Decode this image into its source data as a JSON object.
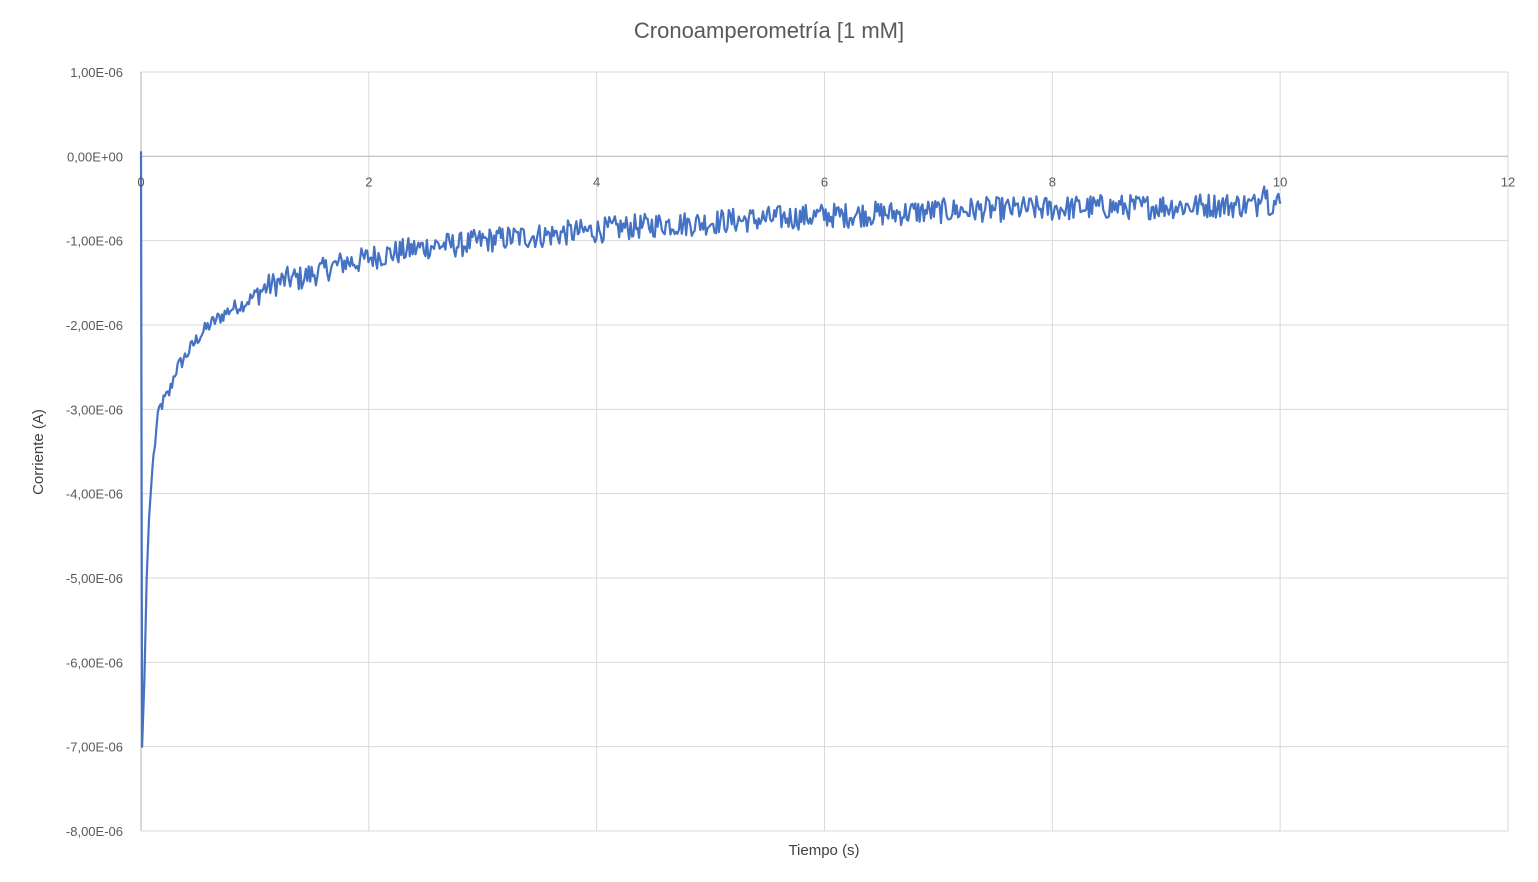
{
  "chart_data": {
    "type": "line",
    "title": "Cronoamperometría [1 mM]",
    "xlabel": "Tiempo (s)",
    "ylabel": "Corriente (A)",
    "xlim": [
      0,
      12
    ],
    "ylim": [
      -8e-06,
      1e-06
    ],
    "x_ticks": [
      0,
      2,
      4,
      6,
      8,
      10,
      12
    ],
    "x_tick_labels": [
      "0",
      "2",
      "4",
      "6",
      "8",
      "10",
      "12"
    ],
    "y_ticks": [
      1e-06,
      0,
      -1e-06,
      -2e-06,
      -3e-06,
      -4e-06,
      -5e-06,
      -6e-06,
      -7e-06,
      -8e-06
    ],
    "y_tick_labels": [
      "1,00E-06",
      "0,00E+00",
      "-1,00E-06",
      "-2,00E-06",
      "-3,00E-06",
      "-4,00E-06",
      "-5,00E-06",
      "-6,00E-06",
      "-7,00E-06",
      "-8,00E-06"
    ],
    "grid": true,
    "legend": "none",
    "series_color": "#4472c4",
    "series": [
      {
        "x": [
          0,
          0.01,
          0.03,
          0.05,
          0.07,
          0.1,
          0.13,
          0.16,
          0.2,
          0.25,
          0.3,
          0.35,
          0.4,
          0.45,
          0.5,
          0.6,
          0.7,
          0.8,
          0.9,
          1.0,
          1.1,
          1.2,
          1.3,
          1.4,
          1.5,
          1.6,
          1.7,
          1.8,
          1.9,
          2.0,
          2.2,
          2.4,
          2.6,
          2.8,
          3.0,
          3.2,
          3.4,
          3.6,
          3.8,
          4.0,
          4.2,
          4.4,
          4.6,
          4.8,
          5.0,
          5.2,
          5.4,
          5.6,
          5.8,
          6.0,
          6.2,
          6.4,
          6.6,
          6.8,
          7.0,
          7.2,
          7.4,
          7.6,
          7.8,
          8.0,
          8.2,
          8.4,
          8.6,
          8.8,
          9.0,
          9.2,
          9.4,
          9.6,
          9.8,
          9.85,
          9.9,
          10.0
        ],
        "y": [
          5e-08,
          -7e-06,
          -6.2e-06,
          -5e-06,
          -4.3e-06,
          -3.7e-06,
          -3.3e-06,
          -3e-06,
          -2.9e-06,
          -2.8e-06,
          -2.55e-06,
          -2.45e-06,
          -2.35e-06,
          -2.25e-06,
          -2.15e-06,
          -2e-06,
          -1.9e-06,
          -1.8e-06,
          -1.75e-06,
          -1.65e-06,
          -1.55e-06,
          -1.5e-06,
          -1.45e-06,
          -1.45e-06,
          -1.4e-06,
          -1.35e-06,
          -1.3e-06,
          -1.25e-06,
          -1.25e-06,
          -1.2e-06,
          -1.15e-06,
          -1.1e-06,
          -1.05e-06,
          -1.05e-06,
          -1e-06,
          -9.7e-07,
          -9.5e-07,
          -9.3e-07,
          -9e-07,
          -8.8e-07,
          -8.5e-07,
          -8.3e-07,
          -8e-07,
          -8e-07,
          -7.8e-07,
          -7.6e-07,
          -7.5e-07,
          -7.3e-07,
          -7.2e-07,
          -7e-07,
          -7e-07,
          -6.8e-07,
          -6.8e-07,
          -6.6e-07,
          -6.5e-07,
          -6.4e-07,
          -6.3e-07,
          -6.3e-07,
          -6.2e-07,
          -6.2e-07,
          -6.1e-07,
          -6e-07,
          -6e-07,
          -6e-07,
          -5.9e-07,
          -5.9e-07,
          -5.8e-07,
          -5.8e-07,
          -5.7e-07,
          -3e-07,
          -5.5e-07,
          -5.5e-07
        ],
        "noise_amplitude": 1.5e-07
      }
    ]
  }
}
